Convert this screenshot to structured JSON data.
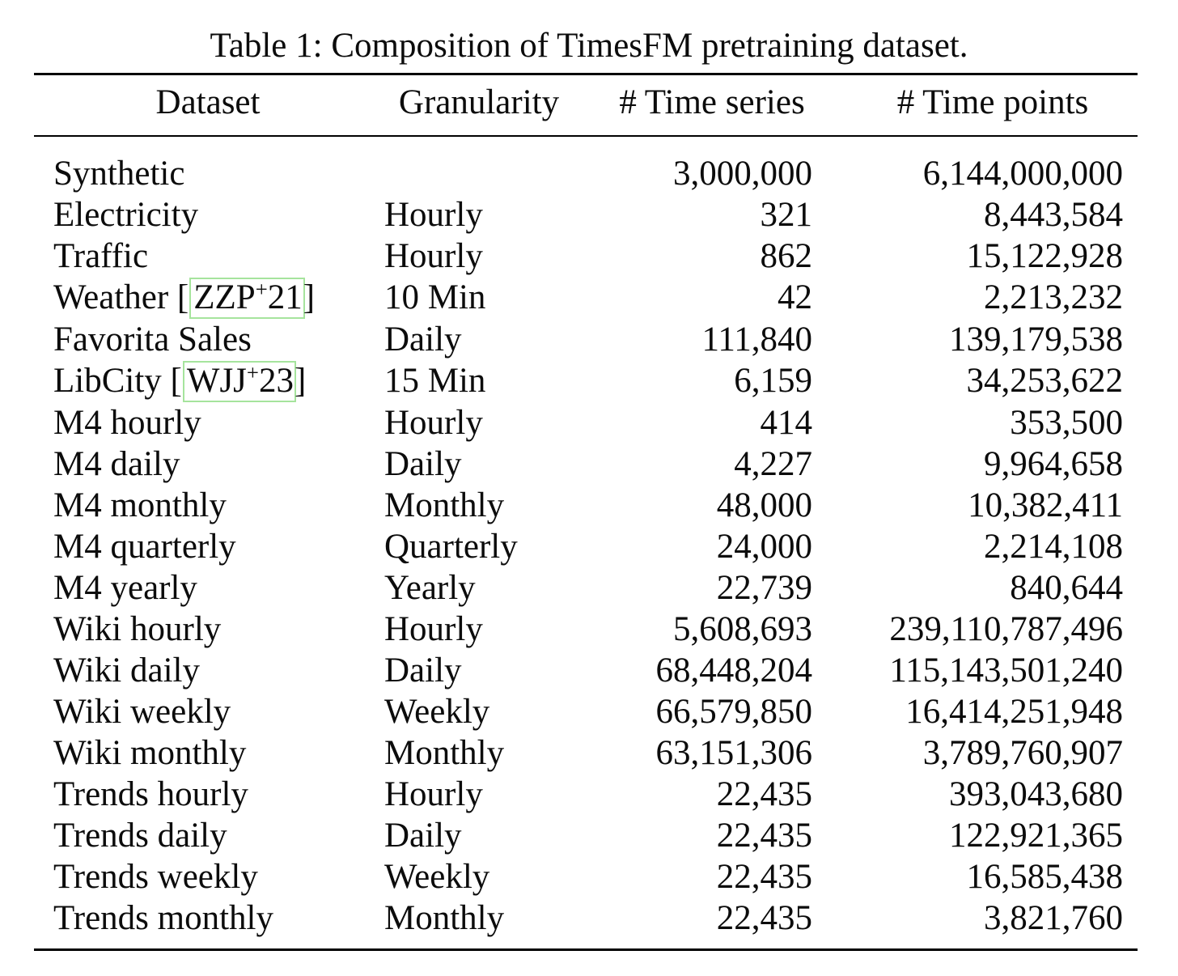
{
  "title": "Table 1: Composition of TimesFM pretraining dataset.",
  "colors": {
    "citation_box_border": "#a6e49d",
    "text": "#0c0c0c",
    "rule": "#000000"
  },
  "columns": [
    "Dataset",
    "Granularity",
    "# Time series",
    "# Time points"
  ],
  "table": {
    "rows": [
      {
        "name": "Synthetic",
        "granularity": "",
        "series": "3,000,000",
        "points": "6,144,000,000"
      },
      {
        "name": "Electricity",
        "granularity": "Hourly",
        "series": "321",
        "points": "8,443,584"
      },
      {
        "name": "Traffic",
        "granularity": "Hourly",
        "series": "862",
        "points": "15,122,928"
      },
      {
        "name_pre": "Weather [",
        "cite": "ZZP",
        "cite_sup": "+",
        "cite_post": "21",
        "name_post": "]",
        "granularity": "10 Min",
        "series": "42",
        "points": "2,213,232"
      },
      {
        "name": "Favorita Sales",
        "granularity": "Daily",
        "series": "111,840",
        "points": "139,179,538"
      },
      {
        "name_pre": "LibCity [",
        "cite": "WJJ",
        "cite_sup": "+",
        "cite_post": "23",
        "name_post": "]",
        "granularity": "15 Min",
        "series": "6,159",
        "points": "34,253,622"
      },
      {
        "name": "M4 hourly",
        "granularity": "Hourly",
        "series": "414",
        "points": "353,500"
      },
      {
        "name": "M4 daily",
        "granularity": "Daily",
        "series": "4,227",
        "points": "9,964,658"
      },
      {
        "name": "M4 monthly",
        "granularity": "Monthly",
        "series": "48,000",
        "points": "10,382,411"
      },
      {
        "name": "M4 quarterly",
        "granularity": "Quarterly",
        "series": "24,000",
        "points": "2,214,108"
      },
      {
        "name": "M4 yearly",
        "granularity": "Yearly",
        "series": "22,739",
        "points": "840,644"
      },
      {
        "name": "Wiki hourly",
        "granularity": "Hourly",
        "series": "5,608,693",
        "points": "239,110,787,496"
      },
      {
        "name": "Wiki daily",
        "granularity": "Daily",
        "series": "68,448,204",
        "points": "115,143,501,240"
      },
      {
        "name": "Wiki weekly",
        "granularity": "Weekly",
        "series": "66,579,850",
        "points": "16,414,251,948"
      },
      {
        "name": "Wiki monthly",
        "granularity": "Monthly",
        "series": "63,151,306",
        "points": "3,789,760,907"
      },
      {
        "name": "Trends hourly",
        "granularity": "Hourly",
        "series": "22,435",
        "points": "393,043,680"
      },
      {
        "name": "Trends daily",
        "granularity": "Daily",
        "series": "22,435",
        "points": "122,921,365"
      },
      {
        "name": "Trends weekly",
        "granularity": "Weekly",
        "series": "22,435",
        "points": "16,585,438"
      },
      {
        "name": "Trends monthly",
        "granularity": "Monthly",
        "series": "22,435",
        "points": "3,821,760"
      }
    ]
  }
}
